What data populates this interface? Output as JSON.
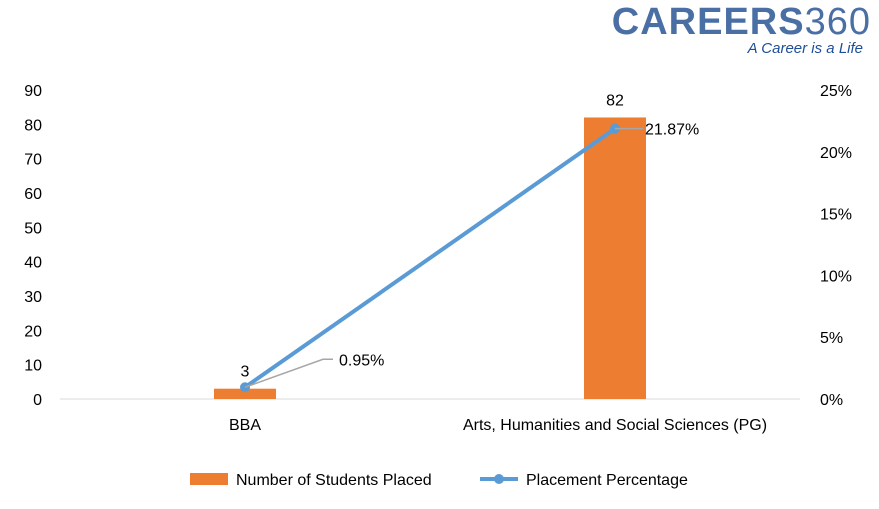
{
  "logo": {
    "brand": "CAREERS",
    "brand_num": "360",
    "tagline": "A Career is a Life"
  },
  "chart_data": {
    "type": "bar",
    "categories": [
      "BBA",
      "Arts, Humanities and Social Sciences (PG)"
    ],
    "series": [
      {
        "name": "Number of Students Placed",
        "type": "bar",
        "axis": "left",
        "values": [
          3,
          82
        ],
        "labels": [
          "3",
          "82"
        ],
        "color": "#ed7d31"
      },
      {
        "name": "Placement Percentage",
        "type": "line",
        "axis": "right",
        "values": [
          0.95,
          21.87
        ],
        "labels": [
          "0.95%",
          "21.87%"
        ],
        "color": "#5b9bd5"
      }
    ],
    "y_left": {
      "min": 0,
      "max": 90,
      "ticks": [
        "0",
        "10",
        "20",
        "30",
        "40",
        "50",
        "60",
        "70",
        "80",
        "90"
      ]
    },
    "y_right": {
      "min": 0,
      "max": 25,
      "ticks": [
        "0%",
        "5%",
        "10%",
        "15%",
        "20%",
        "25%"
      ]
    },
    "grid": false,
    "legend_position": "bottom"
  }
}
